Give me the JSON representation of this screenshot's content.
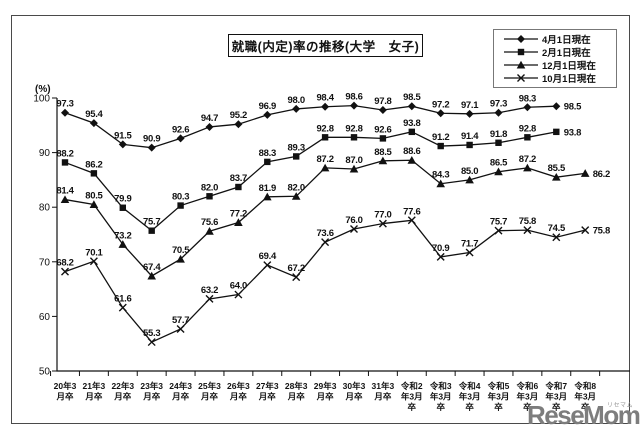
{
  "title": "就職(内定)率の推移(大学　女子)",
  "watermark": {
    "text": "ReseMom.",
    "ruby": "リセマム"
  },
  "chart_data": {
    "type": "line",
    "title": "就職(内定)率の推移(大学　女子)",
    "ylabel": "(%)",
    "ylim": [
      50,
      100
    ],
    "yticks": [
      50,
      60,
      70,
      80,
      90,
      100
    ],
    "grid": false,
    "legend_position": "top-right",
    "line_color": "#111111",
    "categories": [
      "20年3月卒",
      "21年3月卒",
      "22年3月卒",
      "23年3月卒",
      "24年3月卒",
      "25年3月卒",
      "26年3月卒",
      "27年3月卒",
      "28年3月卒",
      "29年3月卒",
      "30年3月卒",
      "31年3月卒",
      "令和2年3月卒",
      "令和3年3月卒",
      "令和4年3月卒",
      "令和5年3月卒",
      "令和6年3月卒",
      "令和7年3月卒",
      "令和8年3月卒"
    ],
    "category_label_lines": [
      [
        "20年3",
        "月卒"
      ],
      [
        "21年3",
        "月卒"
      ],
      [
        "22年3",
        "月卒"
      ],
      [
        "23年3",
        "月卒"
      ],
      [
        "24年3",
        "月卒"
      ],
      [
        "25年3",
        "月卒"
      ],
      [
        "26年3",
        "月卒"
      ],
      [
        "27年3",
        "月卒"
      ],
      [
        "28年3",
        "月卒"
      ],
      [
        "29年3",
        "月卒"
      ],
      [
        "30年3",
        "月卒"
      ],
      [
        "31年3",
        "月卒"
      ],
      [
        "令和2",
        "年3月",
        "卒"
      ],
      [
        "令和3",
        "年3月",
        "卒"
      ],
      [
        "令和4",
        "年3月",
        "卒"
      ],
      [
        "令和5",
        "年3月",
        "卒"
      ],
      [
        "令和6",
        "年3月",
        "卒"
      ],
      [
        "令和7",
        "年3月",
        "卒"
      ],
      [
        "令和8",
        "年3月",
        "卒"
      ]
    ],
    "series": [
      {
        "name": "4月1日現在",
        "marker": "diamond",
        "values": [
          97.3,
          95.4,
          91.5,
          90.9,
          92.6,
          94.7,
          95.2,
          96.9,
          98.0,
          98.4,
          98.6,
          97.8,
          98.5,
          97.2,
          97.1,
          97.3,
          98.3,
          98.5,
          null
        ],
        "labels": [
          "97.3",
          "95.4",
          "91.5",
          "90.9",
          "92.6",
          "94.7",
          "95.2",
          "96.9",
          "98.0",
          "98.4",
          "98.6",
          "97.8",
          "98.5",
          "97.2",
          "97.1",
          "97.3",
          "98.3",
          "98.5",
          null
        ]
      },
      {
        "name": "2月1日現在",
        "marker": "square",
        "values": [
          88.2,
          86.2,
          79.9,
          75.7,
          80.3,
          82.0,
          83.7,
          88.3,
          89.3,
          92.8,
          92.8,
          92.6,
          93.8,
          91.2,
          91.4,
          91.8,
          92.8,
          93.8,
          null
        ],
        "labels": [
          "88.2",
          "86.2",
          "79.9",
          "75.7",
          "80.3",
          "82.0",
          "83.7",
          "88.3",
          "89.3",
          "92.8",
          "92.8",
          "92.6",
          "93.8",
          "91.2",
          "91.4",
          "91.8",
          "92.8",
          "93.8",
          null
        ]
      },
      {
        "name": "12月1日現在",
        "marker": "triangle",
        "values": [
          81.4,
          80.5,
          73.2,
          67.4,
          70.5,
          75.6,
          77.2,
          81.9,
          82.0,
          87.2,
          87.0,
          88.5,
          88.6,
          84.3,
          85.0,
          86.5,
          87.2,
          85.5,
          86.2
        ],
        "labels": [
          "81.4",
          "80.5",
          "73.2",
          "67.4",
          "70.5",
          "75.6",
          "77.2",
          "81.9",
          "82.0",
          "87.2",
          "87.0",
          "88.5",
          "88.6",
          "84.3",
          "85.0",
          "86.5",
          "87.2",
          "85.5",
          "86.2"
        ]
      },
      {
        "name": "10月1日現在",
        "marker": "x",
        "values": [
          68.2,
          70.1,
          61.6,
          55.3,
          57.7,
          63.2,
          64.0,
          69.4,
          67.2,
          73.6,
          76.0,
          77.0,
          77.6,
          70.9,
          71.7,
          75.7,
          75.8,
          74.5,
          75.8
        ],
        "labels": [
          "68.2",
          "70.1",
          "61.6",
          "55.3",
          "57.7",
          "63.2",
          "64.0",
          "69.4",
          "67.2",
          "73.6",
          "76.0",
          "77.0",
          "77.6",
          "70.9",
          "71.7",
          "75.7",
          "75.8",
          "74.5",
          "75.8"
        ]
      }
    ]
  }
}
